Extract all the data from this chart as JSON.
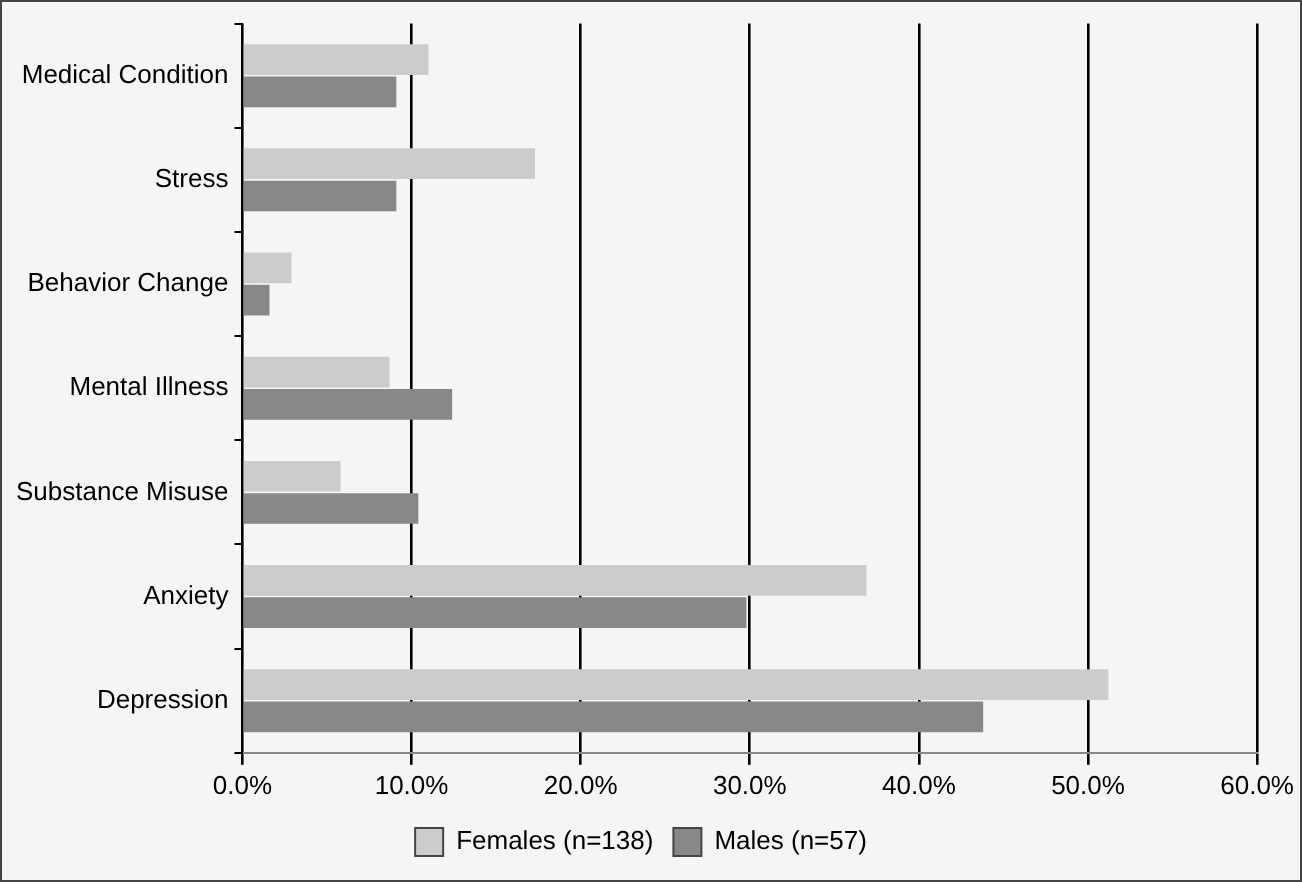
{
  "chart_data": {
    "type": "bar",
    "orientation": "horizontal",
    "categories": [
      "Medical Condition",
      "Stress",
      "Behavior Change",
      "Mental Illness",
      "Substance Misuse",
      "Anxiety",
      "Depression"
    ],
    "series": [
      {
        "name": "Females (n=138)",
        "color": "#cbcccb",
        "values": [
          11.0,
          17.3,
          2.9,
          8.7,
          5.8,
          36.9,
          51.2
        ]
      },
      {
        "name": "Males (n=57)",
        "color": "#888888",
        "values": [
          9.1,
          9.1,
          1.6,
          12.4,
          10.4,
          29.8,
          43.8
        ]
      }
    ],
    "xlim": [
      0,
      60
    ],
    "xticks": [
      {
        "value": 0,
        "label": "0.0%"
      },
      {
        "value": 10,
        "label": "10.0%"
      },
      {
        "value": 20,
        "label": "20.0%"
      },
      {
        "value": 30,
        "label": "30.0%"
      },
      {
        "value": 40,
        "label": "40.0%"
      },
      {
        "value": 50,
        "label": "50.0%"
      },
      {
        "value": 60,
        "label": "60.0%"
      }
    ],
    "grid": "x",
    "legend": "bottom"
  }
}
